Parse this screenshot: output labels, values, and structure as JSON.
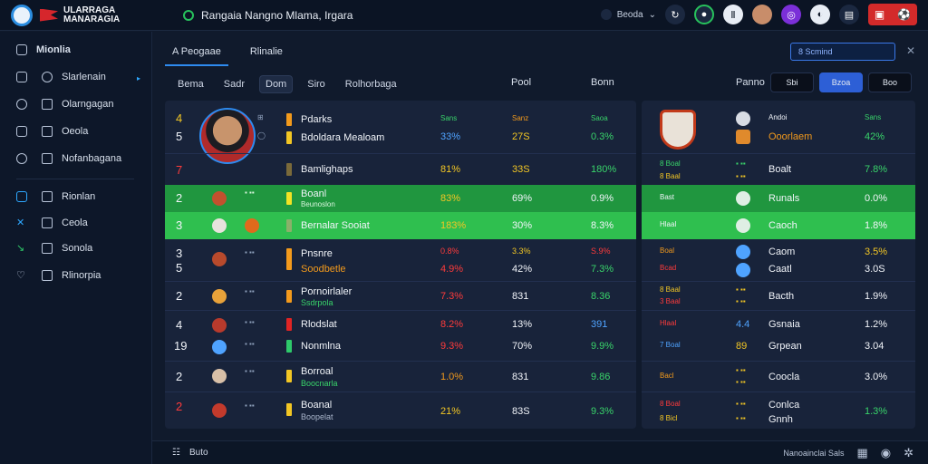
{
  "brand": {
    "name": "ULARRAGA\nMANARAGIA"
  },
  "header": {
    "title": "Rangaia Nangno Mlama, Irgara",
    "status": "Beoda"
  },
  "sidebar": {
    "items": [
      {
        "label": "Mionlia"
      },
      {
        "label": "Slarlenain"
      },
      {
        "label": "Olarngagan"
      },
      {
        "label": "Oeola"
      },
      {
        "label": "Nofanbagana"
      },
      {
        "label": "Rionlan"
      },
      {
        "label": "Ceola"
      },
      {
        "label": "Sonola"
      },
      {
        "label": "Rlinorpia"
      }
    ]
  },
  "main": {
    "tabs": [
      {
        "label": "A Peogaae"
      },
      {
        "label": "Rlinalie"
      }
    ],
    "search": {
      "value": "8 Scmind"
    },
    "filters": [
      {
        "label": "Bema"
      },
      {
        "label": "Sadr"
      },
      {
        "label": "Dom"
      },
      {
        "label": "Siro"
      },
      {
        "label": "Rolhorbaga"
      }
    ],
    "col_headers": {
      "pool": "Pool",
      "bonn": "Bonn",
      "panno": "Panno"
    },
    "segments": [
      {
        "label": "Sbi"
      },
      {
        "label": "Bzoa"
      },
      {
        "label": "Boo"
      }
    ],
    "left_header_small": [
      "Sans",
      "Sanz",
      "Saoa"
    ],
    "right_header": {
      "label": "Andoi",
      "val": "Sans"
    },
    "left_rows": [
      {
        "rank": "4",
        "rank2": "5",
        "name": "Pdarks",
        "sub": "Bdoldara Mealoam",
        "c1": "33%",
        "c2": "27S",
        "c3": "0.3%"
      },
      {
        "rank": "7",
        "name": "Bamlighaps",
        "c1": "81%",
        "c2": "33S",
        "c3": "180%"
      },
      {
        "rank": "2",
        "name": "Boanl",
        "sub": "Beunoslon",
        "c1": "83%",
        "c2": "69%",
        "c3": "0.9%"
      },
      {
        "rank": "3",
        "name": "Bernalar Sooiat",
        "c1": "183%",
        "c2": "30%",
        "c3": "8.3%"
      },
      {
        "rank": "3",
        "rank2": "5",
        "name": "Pnsnre",
        "sub": "Soodbetle",
        "c1": "0.8%",
        "c1b": "4.9%",
        "c2": "3.3%",
        "c2b": "42%",
        "c3": "S.9%",
        "c3b": "7.3%"
      },
      {
        "rank": "2",
        "name": "Pornoirlaler",
        "sub": "Ssdrpola",
        "c1": "7.3%",
        "c2": "831",
        "c3": "8.36"
      },
      {
        "rank": "4",
        "rank2": "19",
        "name": "Rlodslat",
        "sub": "Nonmlna",
        "c1": "8.2%",
        "c1b": "9.3%",
        "c2": "13%",
        "c2b": "70%",
        "c3": "391",
        "c3b": "9.9%"
      },
      {
        "rank": "2",
        "name": "Borroal",
        "sub": "Boocnarla",
        "c1": "1.0%",
        "c2": "831",
        "c3": "9.86"
      },
      {
        "rank": "2",
        "name": "Boanal",
        "sub": "Boopelat",
        "c1": "21%",
        "c2": "83S",
        "c3": "9.3%"
      }
    ],
    "right_rows": [
      {
        "name": "Ooorlaem",
        "val": "42%"
      },
      {
        "tag": "8 Boal",
        "tag2": "8 Baal",
        "name": "Boalt",
        "val": "7.8%"
      },
      {
        "tag": "Bast",
        "name": "Runals",
        "val": "0.0%"
      },
      {
        "tag": "Hlaal",
        "name": "Caoch",
        "val": "1.8%"
      },
      {
        "tag": "Boal",
        "tag2": "Bcad",
        "name": "Caom",
        "name2": "Caatl",
        "val": "3.5%",
        "val2": "3.0S"
      },
      {
        "tag": "8 Baal",
        "tag2": "3 Baal",
        "name": "Bacth",
        "val": "1.9%"
      },
      {
        "tag": "Hlaal",
        "tag2": "7 Boal",
        "num": "4.4",
        "num2": "89",
        "name": "Gsnaia",
        "name2": "Grpean",
        "val": "1.2%",
        "val2": "3.04"
      },
      {
        "tag": "Bacl",
        "name": "Coocla",
        "val": "3.0%"
      },
      {
        "tag": "8 Boal",
        "tag2": "8 Bicl",
        "name": "Conlca",
        "name2": "Gnnh",
        "val": "1.3%"
      }
    ]
  },
  "footer": {
    "left_label": "Buto",
    "right_label": "Nanoainclai Sals"
  },
  "colors": {
    "accent": "#2e8bf0",
    "highlight1": "#20963f",
    "highlight2": "#2fbf4f",
    "danger": "#d32a2a"
  }
}
